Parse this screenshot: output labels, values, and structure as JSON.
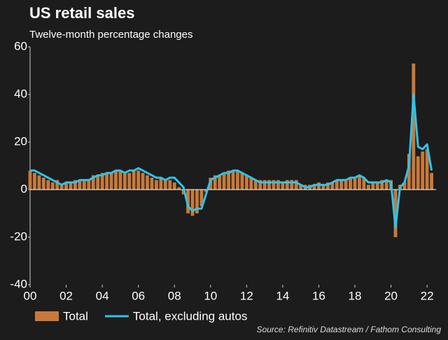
{
  "chart_data": {
    "type": "bar-line",
    "title": "US retail sales",
    "subtitle": "Twelve-month percentage changes",
    "source": "Source: Refinitiv Datastream / Fathom Consulting",
    "x": [
      2000,
      2000.25,
      2000.5,
      2000.75,
      2001,
      2001.25,
      2001.5,
      2001.75,
      2002,
      2002.25,
      2002.5,
      2002.75,
      2003,
      2003.25,
      2003.5,
      2003.75,
      2004,
      2004.25,
      2004.5,
      2004.75,
      2005,
      2005.25,
      2005.5,
      2005.75,
      2006,
      2006.25,
      2006.5,
      2006.75,
      2007,
      2007.25,
      2007.5,
      2007.75,
      2008,
      2008.25,
      2008.5,
      2008.75,
      2009,
      2009.25,
      2009.5,
      2009.75,
      2010,
      2010.25,
      2010.5,
      2010.75,
      2011,
      2011.25,
      2011.5,
      2011.75,
      2012,
      2012.25,
      2012.5,
      2012.75,
      2013,
      2013.25,
      2013.5,
      2013.75,
      2014,
      2014.25,
      2014.5,
      2014.75,
      2015,
      2015.25,
      2015.5,
      2015.75,
      2016,
      2016.25,
      2016.5,
      2016.75,
      2017,
      2017.25,
      2017.5,
      2017.75,
      2018,
      2018.25,
      2018.5,
      2018.75,
      2019,
      2019.25,
      2019.5,
      2019.75,
      2020,
      2020.25,
      2020.5,
      2020.75,
      2021,
      2021.25,
      2021.5,
      2021.75,
      2022,
      2022.25
    ],
    "series": [
      {
        "name": "Total",
        "color": "#c8793a",
        "kind": "bar",
        "values": [
          8,
          7,
          6,
          5,
          4,
          3,
          4,
          2,
          3,
          3,
          4,
          4,
          4,
          4,
          6,
          6,
          7,
          7,
          7,
          8,
          8,
          7,
          7,
          8,
          8,
          7,
          6,
          5,
          4,
          5,
          4,
          4,
          3,
          1,
          -2,
          -10,
          -11,
          -10,
          -7,
          -1,
          5,
          6,
          6,
          7,
          8,
          8,
          8,
          7,
          6,
          5,
          4,
          4,
          4,
          4,
          4,
          4,
          3,
          4,
          4,
          4,
          2,
          2,
          2,
          2,
          3,
          2,
          3,
          3,
          4,
          4,
          4,
          5,
          5,
          6,
          5,
          2,
          3,
          3,
          4,
          4,
          4,
          -20,
          2,
          3,
          15,
          53,
          14,
          16,
          17,
          7
        ]
      },
      {
        "name": "Total, excluding autos",
        "color": "#2ec4ec",
        "kind": "line",
        "values": [
          8,
          8,
          7,
          6,
          5,
          4,
          3,
          2,
          3,
          3,
          3,
          4,
          4,
          4,
          5,
          6,
          6,
          7,
          7,
          8,
          8,
          7,
          8,
          8,
          9,
          8,
          7,
          6,
          5,
          5,
          4,
          5,
          5,
          3,
          1,
          -7,
          -9,
          -8,
          -8,
          -2,
          4,
          5,
          6,
          7,
          7,
          8,
          8,
          7,
          6,
          5,
          4,
          3,
          3,
          3,
          3,
          3,
          3,
          3,
          3,
          3,
          2,
          1,
          1,
          2,
          2,
          2,
          2,
          3,
          4,
          4,
          4,
          5,
          5,
          6,
          5,
          3,
          3,
          3,
          3,
          4,
          3,
          -16,
          1,
          3,
          10,
          40,
          18,
          17,
          19,
          8
        ]
      }
    ],
    "xlim": [
      2000,
      2022.5
    ],
    "xticks": [
      {
        "value": 2000,
        "label": "00"
      },
      {
        "value": 2002,
        "label": "02"
      },
      {
        "value": 2004,
        "label": "04"
      },
      {
        "value": 2006,
        "label": "06"
      },
      {
        "value": 2008,
        "label": "08"
      },
      {
        "value": 2010,
        "label": "10"
      },
      {
        "value": 2012,
        "label": "12"
      },
      {
        "value": 2014,
        "label": "14"
      },
      {
        "value": 2016,
        "label": "16"
      },
      {
        "value": 2018,
        "label": "18"
      },
      {
        "value": 2020,
        "label": "20"
      },
      {
        "value": 2022,
        "label": "22"
      }
    ],
    "ylim": [
      -40,
      60
    ],
    "yticks": [
      -40,
      -20,
      0,
      20,
      40,
      60
    ]
  }
}
